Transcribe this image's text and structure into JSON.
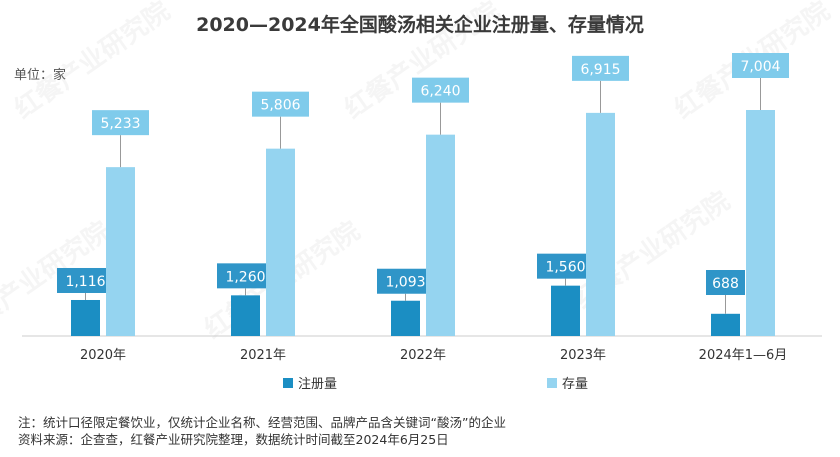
{
  "chart_data": {
    "type": "bar",
    "title": "2020—2024年全国酸汤相关企业注册量、存量情况",
    "unit_label": "单位：家",
    "categories": [
      "2020年",
      "2021年",
      "2022年",
      "2023年",
      "2024年1—6月"
    ],
    "series": [
      {
        "name": "注册量",
        "values": [
          1116,
          1260,
          1093,
          1560,
          688
        ],
        "labels": [
          "1,116",
          "1,260",
          "1,093",
          "1,560",
          "688"
        ],
        "color": "#1b8ec3",
        "label_color": "#2f95c8"
      },
      {
        "name": "存量",
        "values": [
          5233,
          5806,
          6240,
          6915,
          7004
        ],
        "labels": [
          "5,233",
          "5,806",
          "6,240",
          "6,915",
          "7,004"
        ],
        "color": "#95d4f0",
        "label_color": "#7fcbeb"
      }
    ],
    "ylim": [
      0,
      7004
    ],
    "grid": false,
    "legend": "bottom"
  },
  "notes": {
    "note": "注：统计口径限定餐饮业，仅统计企业名称、经营范围、品牌产品含关键词“酸汤”的企业",
    "source": "资料来源：企查查，红餐产业研究院整理，数据统计时间截至2024年6月25日"
  },
  "watermark": "红餐产业研究院"
}
